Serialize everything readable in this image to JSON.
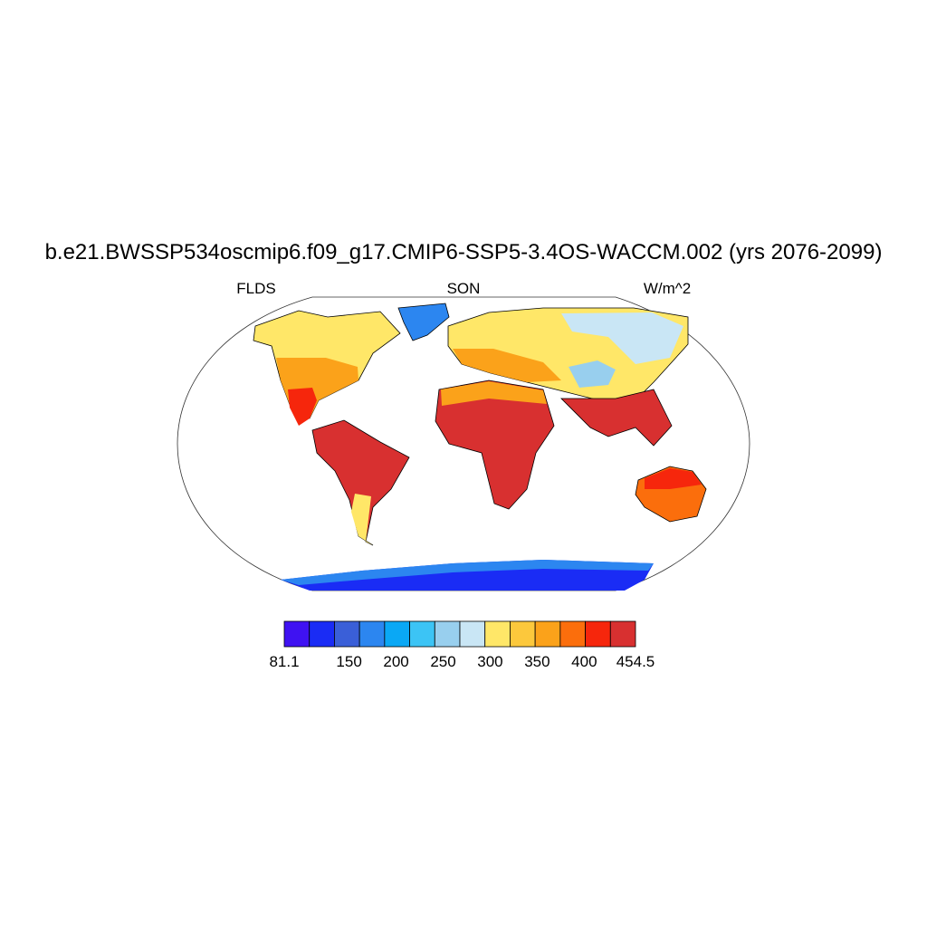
{
  "title": "b.e21.BWSSP534oscmip6.f09_g17.CMIP6-SSP5-3.4OS-WACCM.002 (yrs 2076-2099)",
  "left_string": "FLDS",
  "center_string": "SON",
  "right_string": "W/m^2",
  "colorbar": {
    "colors": [
      "#3f12f2",
      "#1a2cf5",
      "#3a5fd8",
      "#2c86f0",
      "#0aa8f5",
      "#3cc4f5",
      "#98cfee",
      "#c9e6f5",
      "#ffe768",
      "#fcc83c",
      "#fba21a",
      "#fb6e0c",
      "#f6260c",
      "#d83030"
    ],
    "range": [
      81.1,
      454.5
    ],
    "ticks": [
      81.1,
      150,
      200,
      250,
      300,
      350,
      400,
      454.5
    ]
  }
}
